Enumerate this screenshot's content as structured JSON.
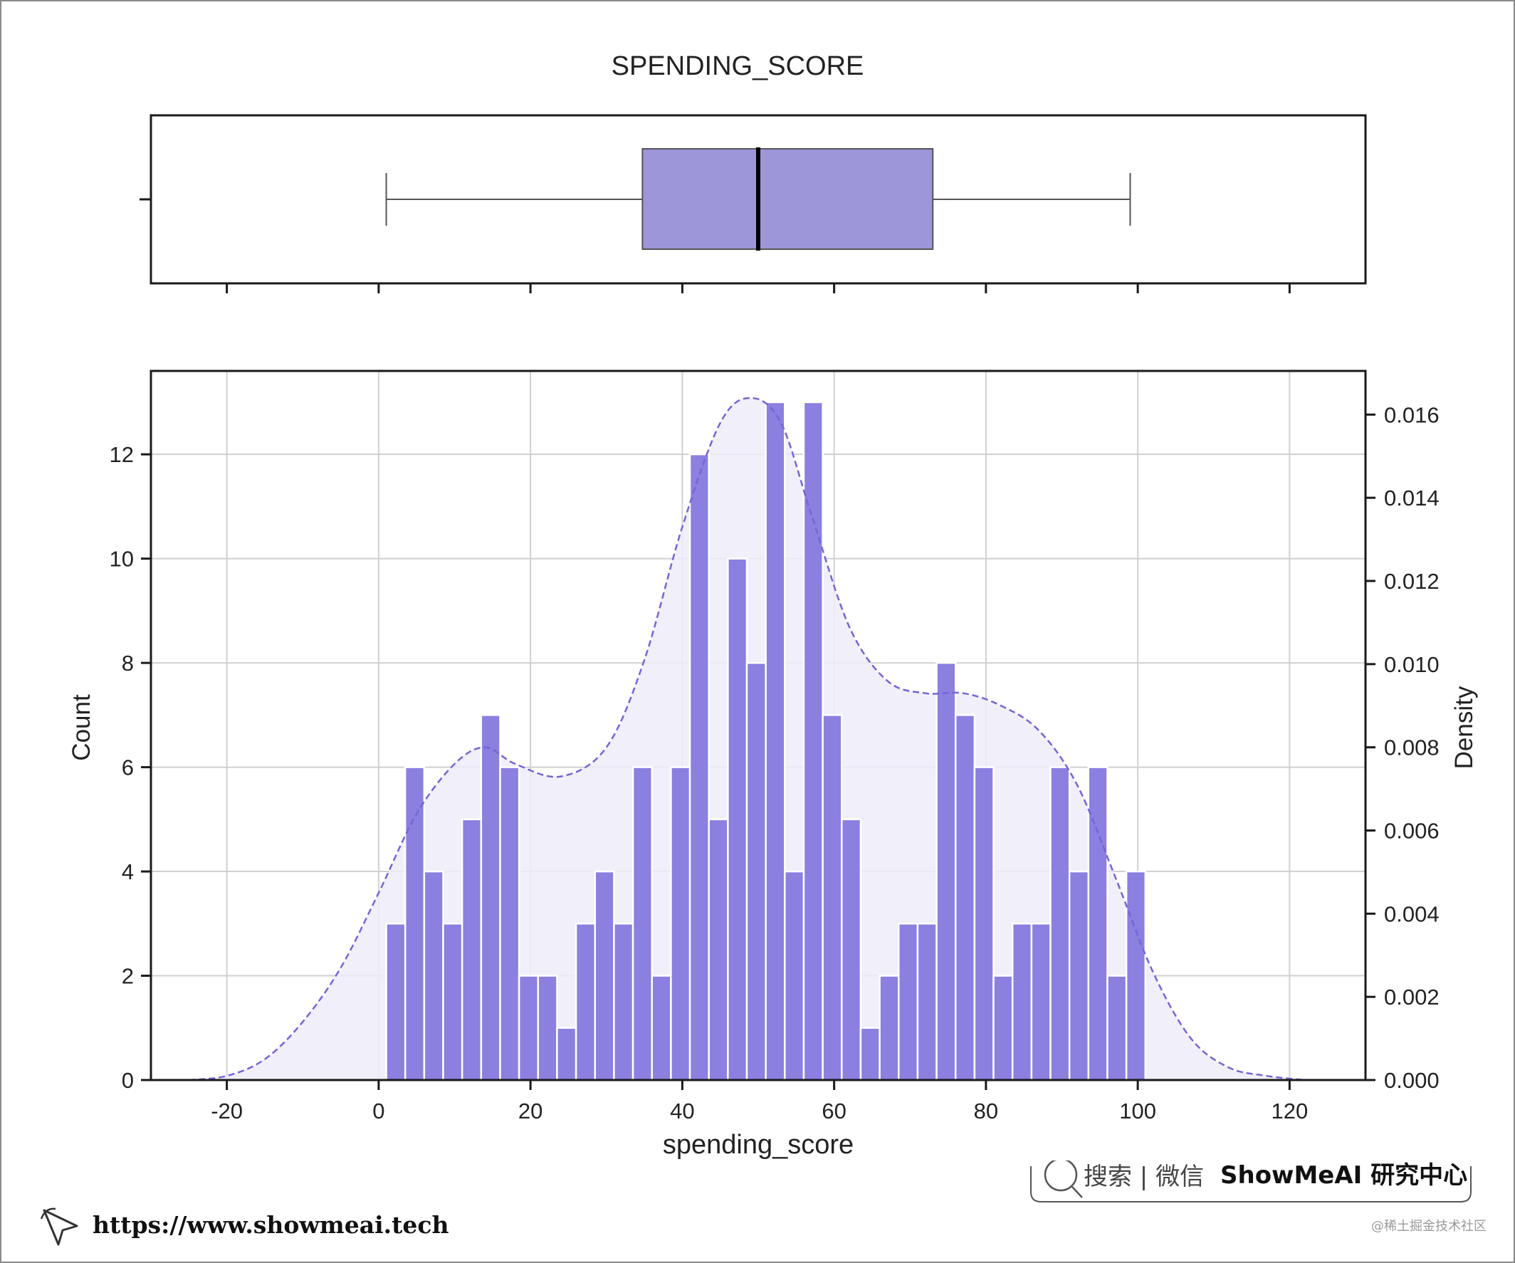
{
  "chart_data": {
    "type": "histogram",
    "title": "SPENDING_SCORE",
    "xlabel": "spending_score",
    "ylabel": "Count",
    "y2label": "Density",
    "xlim": [
      -30,
      130
    ],
    "ylim": [
      0,
      13.6
    ],
    "y2lim": [
      0,
      0.01705
    ],
    "xticks": [
      "-20",
      "0",
      "20",
      "40",
      "60",
      "80",
      "100",
      "120"
    ],
    "xtick_values": [
      -20,
      0,
      20,
      40,
      60,
      80,
      100,
      120
    ],
    "yticks": [
      "0",
      "2",
      "4",
      "6",
      "8",
      "10",
      "12"
    ],
    "ytick_values": [
      0,
      2,
      4,
      6,
      8,
      10,
      12
    ],
    "y2ticks": [
      "0.000",
      "0.002",
      "0.004",
      "0.006",
      "0.008",
      "0.010",
      "0.012",
      "0.014",
      "0.016"
    ],
    "y2tick_values": [
      0,
      0.002,
      0.004,
      0.006,
      0.008,
      0.01,
      0.012,
      0.014,
      0.016
    ],
    "grid": true,
    "bin_start": 1,
    "bin_width": 2.5,
    "counts": [
      3,
      6,
      4,
      3,
      5,
      7,
      6,
      2,
      2,
      1,
      3,
      4,
      3,
      6,
      2,
      6,
      12,
      5,
      10,
      8,
      13,
      4,
      13,
      7,
      5,
      1,
      2,
      3,
      3,
      8,
      7,
      6,
      2,
      3,
      3,
      6,
      4,
      6,
      2,
      4
    ],
    "kde": {
      "x": [
        -25,
        -20,
        -15,
        -10,
        -5,
        0,
        5,
        10,
        14,
        18,
        24,
        30,
        35,
        40,
        45,
        49,
        53,
        57,
        62,
        67,
        72,
        77,
        82,
        87,
        92,
        97,
        102,
        107,
        112,
        117,
        122
      ],
      "density": [
        0.0,
        0.0001,
        0.0005,
        0.0014,
        0.0027,
        0.0045,
        0.0064,
        0.0076,
        0.008,
        0.0076,
        0.0073,
        0.008,
        0.0101,
        0.0133,
        0.0158,
        0.0164,
        0.0158,
        0.0136,
        0.0109,
        0.0096,
        0.0093,
        0.0093,
        0.009,
        0.0084,
        0.0071,
        0.0049,
        0.0026,
        0.001,
        0.0003,
        0.0001,
        0.0
      ]
    },
    "boxplot": {
      "whisker_low": 1,
      "q1": 34.75,
      "median": 50,
      "q3": 73,
      "whisker_high": 99
    },
    "colors": {
      "bar": "#8b7fe0",
      "box": "#9d96d9",
      "kde_line": "#7465d6",
      "kde_fill": "#eeecf9",
      "grid": "#d0d0d0"
    }
  },
  "footer": {
    "url": "https://www.showmeai.tech",
    "search_label": "搜索 | 微信",
    "brand": "ShowMeAI 研究中心",
    "credit": "@稀土掘金技术社区",
    "pointer_icon": "cursor-arrow-icon",
    "search_icon": "magnifier-icon"
  }
}
